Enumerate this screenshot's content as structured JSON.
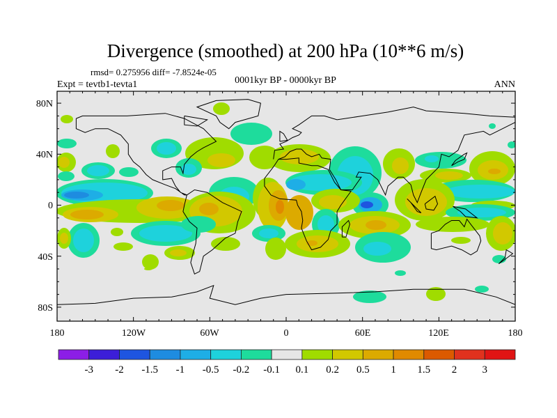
{
  "title": "Divergence (smoothed) at 200 hPa (10**6 m/s)",
  "stats": "rmsd= 0.275956 diff= -7.8524e-05",
  "experiment": "Expt = tevtb1-tevta1",
  "period": "0001kyr BP - 0000kyr BP",
  "season": "ANN",
  "map": {
    "x_labels": [
      "180",
      "120W",
      "60W",
      "0",
      "60E",
      "120E",
      "180"
    ],
    "y_labels": [
      "80N",
      "40N",
      "0",
      "40S",
      "80S"
    ],
    "background_color": "#e6e6e6"
  },
  "colorbar": {
    "labels": [
      "-3",
      "-2",
      "-1.5",
      "-1",
      "-0.5",
      "-0.2",
      "-0.1",
      "0.1",
      "0.2",
      "0.5",
      "1",
      "1.5",
      "2",
      "3"
    ],
    "colors": [
      "#8c1ee6",
      "#3c1ed8",
      "#1e55e0",
      "#1e8ce0",
      "#1eaee6",
      "#1ed2dc",
      "#1edc9c",
      "#e6e6e6",
      "#a0dc00",
      "#d2c800",
      "#dcaa00",
      "#e08a00",
      "#dc5a00",
      "#e0321e",
      "#e01414"
    ]
  }
}
